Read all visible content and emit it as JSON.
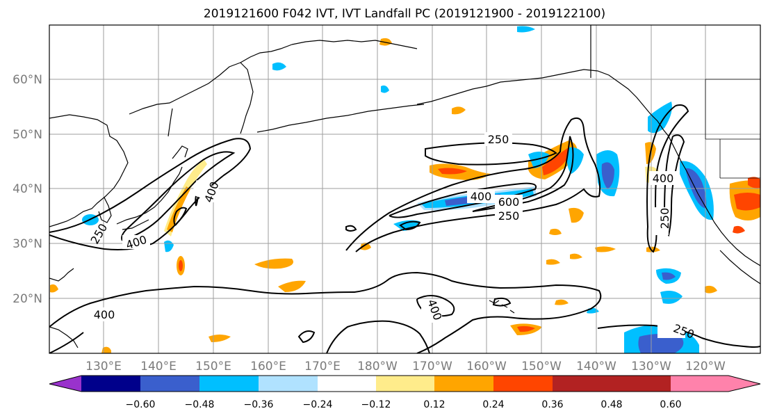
{
  "title": "2019121600 F042 IVT, IVT Landfall PC (2019121900 - 2019122100)",
  "map": {
    "lat_ticks": [
      "60°N",
      "50°N",
      "40°N",
      "30°N",
      "20°N"
    ],
    "lon_ticks": [
      "130°E",
      "140°E",
      "150°E",
      "160°E",
      "170°E",
      "180°W",
      "170°W",
      "160°W",
      "150°W",
      "140°W",
      "130°W",
      "120°W"
    ],
    "grid": true,
    "contour_labels": [
      "250",
      "400",
      "600",
      "250",
      "400",
      "400",
      "400",
      "250",
      "400",
      "250",
      "400",
      "250"
    ]
  },
  "colorbar": {
    "ticks": [
      "−0.60",
      "−0.48",
      "−0.36",
      "−0.24",
      "−0.12",
      "0.12",
      "0.24",
      "0.36",
      "0.48",
      "0.60"
    ],
    "colors": [
      "#9932cc",
      "#00008b",
      "#3a5fcd",
      "#00bfff",
      "#b0e2ff",
      "#ffffff",
      "#ffec8b",
      "#ffa500",
      "#ff4500",
      "#b22222",
      "#ff82ab"
    ],
    "extend": "both"
  }
}
